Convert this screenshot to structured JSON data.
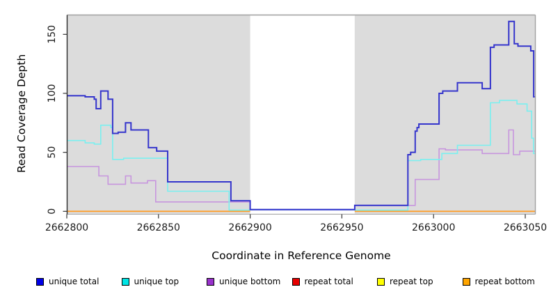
{
  "chart_data": {
    "type": "line",
    "subtype": "step",
    "title": "",
    "xlabel": "Coordinate in Reference Genome",
    "ylabel": "Read Coverage Depth",
    "x_ticks": [
      2662800,
      2662850,
      2662900,
      2662950,
      2663000,
      2663050
    ],
    "y_ticks": [
      0,
      50,
      100,
      150
    ],
    "xlim": [
      2662800,
      2663055
    ],
    "ylim": [
      0,
      166
    ],
    "x_end": 2663055.2,
    "grid": false,
    "plot_background": "#dcdcdc",
    "gap_region": {
      "start": 2662900,
      "end": 2662957,
      "color": "#ffffff"
    },
    "draw_order": [
      "repeat top",
      "repeat total",
      "repeat bottom",
      "unique bottom",
      "unique top",
      "unique total"
    ],
    "series": [
      {
        "name": "unique total",
        "line_color": "#3434cc",
        "line_width": 2,
        "points": [
          [
            2662800.2,
            98
          ],
          [
            2662810,
            97
          ],
          [
            2662815,
            95
          ],
          [
            2662816,
            87
          ],
          [
            2662818.5,
            102
          ],
          [
            2662822.5,
            95
          ],
          [
            2662825,
            66
          ],
          [
            2662828,
            67
          ],
          [
            2662832,
            75
          ],
          [
            2662835,
            69
          ],
          [
            2662844.5,
            54
          ],
          [
            2662849,
            51
          ],
          [
            2662855,
            25
          ],
          [
            2662889.5,
            9
          ],
          [
            2662900,
            1.5
          ],
          [
            2662957,
            5
          ],
          [
            2662986,
            48
          ],
          [
            2662987.5,
            50
          ],
          [
            2662990,
            68
          ],
          [
            2662991,
            71
          ],
          [
            2662992,
            74
          ],
          [
            2663003,
            100
          ],
          [
            2663005,
            102
          ],
          [
            2663013,
            109
          ],
          [
            2663026.5,
            104
          ],
          [
            2663031,
            139
          ],
          [
            2663033,
            141
          ],
          [
            2663041,
            161
          ],
          [
            2663044,
            142
          ],
          [
            2663046,
            140
          ],
          [
            2663053,
            136
          ],
          [
            2663054.6,
            97
          ]
        ]
      },
      {
        "name": "unique top",
        "line_color": "#79f0f0",
        "line_width": 1.6,
        "points": [
          [
            2662800.2,
            60
          ],
          [
            2662810,
            58
          ],
          [
            2662815,
            57
          ],
          [
            2662818.5,
            73
          ],
          [
            2662824,
            71
          ],
          [
            2662825,
            44
          ],
          [
            2662831,
            45
          ],
          [
            2662855,
            17
          ],
          [
            2662888.5,
            1
          ],
          [
            2662900,
            1.3
          ],
          [
            2662957,
            1
          ],
          [
            2662986,
            43
          ],
          [
            2662993,
            44
          ],
          [
            2663004.5,
            49
          ],
          [
            2663013,
            56
          ],
          [
            2663031,
            92
          ],
          [
            2663036,
            94
          ],
          [
            2663045.5,
            91
          ],
          [
            2663051,
            85
          ],
          [
            2663053.5,
            62
          ],
          [
            2663054.5,
            49
          ]
        ]
      },
      {
        "name": "unique bottom",
        "line_color": "#c795de",
        "line_width": 1.6,
        "points": [
          [
            2662800.2,
            38
          ],
          [
            2662817.5,
            30
          ],
          [
            2662822.5,
            23
          ],
          [
            2662832,
            30
          ],
          [
            2662835,
            24
          ],
          [
            2662844,
            26
          ],
          [
            2662848.5,
            8
          ],
          [
            2662900,
            1.2
          ],
          [
            2662957,
            5
          ],
          [
            2662990,
            27
          ],
          [
            2663003,
            53
          ],
          [
            2663006.5,
            52
          ],
          [
            2663026.5,
            49
          ],
          [
            2663041,
            69
          ],
          [
            2663043.5,
            48
          ],
          [
            2663047,
            51
          ]
        ]
      },
      {
        "name": "repeat total",
        "line_color": "#e60000",
        "line_width": 1.5,
        "points": [
          [
            2662800.2,
            0
          ]
        ]
      },
      {
        "name": "repeat top",
        "line_color": "#ffff00",
        "line_width": 1.5,
        "points": [
          [
            2662800.2,
            0
          ]
        ]
      },
      {
        "name": "repeat bottom",
        "line_color": "#ff9e2a",
        "line_width": 1.8,
        "points": [
          [
            2662800.2,
            0
          ]
        ]
      }
    ],
    "legend": {
      "position": "bottom",
      "entries": [
        {
          "label": "unique total",
          "color": "#0000e6"
        },
        {
          "label": "unique top",
          "color": "#00e5e5"
        },
        {
          "label": "unique bottom",
          "color": "#9932cc"
        },
        {
          "label": "repeat total",
          "color": "#e60000"
        },
        {
          "label": "repeat top",
          "color": "#ffff00"
        },
        {
          "label": "repeat bottom",
          "color": "#ffa500"
        }
      ]
    }
  }
}
